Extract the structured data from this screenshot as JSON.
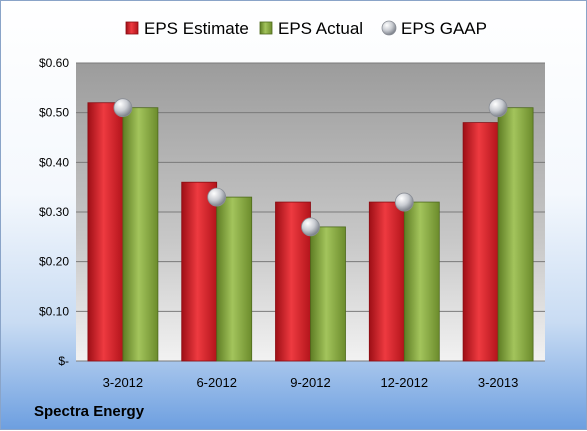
{
  "company": "Spectra Energy",
  "colors": {
    "estimate": "#e3262d",
    "actual": "#8fb04a",
    "gaap": "#c9ccd2"
  },
  "chart_data": {
    "type": "bar",
    "categories": [
      "3-2012",
      "6-2012",
      "9-2012",
      "12-2012",
      "3-2013"
    ],
    "series": [
      {
        "name": "EPS Estimate",
        "type": "bar",
        "values": [
          0.52,
          0.36,
          0.32,
          0.32,
          0.48
        ]
      },
      {
        "name": "EPS Actual",
        "type": "bar",
        "values": [
          0.51,
          0.33,
          0.27,
          0.32,
          0.51
        ]
      },
      {
        "name": "EPS GAAP",
        "type": "scatter",
        "values": [
          0.51,
          0.33,
          0.27,
          0.32,
          0.51
        ]
      }
    ],
    "ylim": [
      0,
      0.6
    ],
    "yticks": [
      0,
      0.1,
      0.2,
      0.3,
      0.4,
      0.5,
      0.6
    ],
    "ytick_labels": [
      "$-",
      "$0.10",
      "$0.20",
      "$0.30",
      "$0.40",
      "$0.50",
      "$0.60"
    ],
    "legend": "top",
    "grid": true
  }
}
